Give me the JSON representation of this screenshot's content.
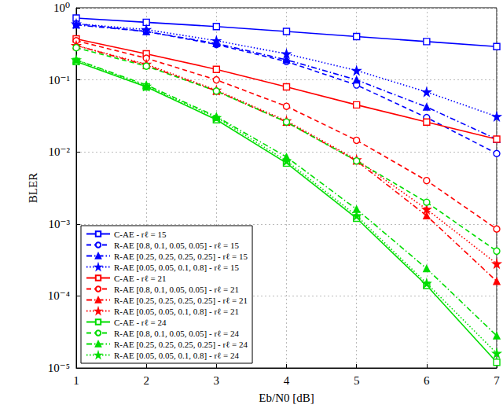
{
  "chart_data": {
    "type": "line",
    "x_label": "Eb/N0 [dB]",
    "y_label": "BLER",
    "log": "y",
    "grid": true,
    "legend": "lower left",
    "xlim": [
      1,
      7
    ],
    "xticks": [
      1,
      2,
      3,
      4,
      5,
      6,
      7
    ],
    "ylim": [
      1e-05,
      1
    ],
    "yticks": [
      {
        "value": 1e-05,
        "label": "10⁻⁵"
      },
      {
        "value": 0.0001,
        "label": "10⁻⁴"
      },
      {
        "value": 0.001,
        "label": "10⁻³"
      },
      {
        "value": 0.01,
        "label": "10⁻²"
      },
      {
        "value": 0.1,
        "label": "10⁻¹"
      },
      {
        "value": 1,
        "label": "10⁰"
      }
    ],
    "x": [
      1,
      2,
      3,
      4,
      5,
      6,
      7
    ],
    "series": [
      {
        "name": "C-AE - rℓ = 15",
        "color": "#0000ff",
        "marker": "square",
        "line_style": "solid",
        "values": [
          0.72,
          0.63,
          0.55,
          0.47,
          0.4,
          0.34,
          0.29
        ]
      },
      {
        "name": "R-AE [0.8, 0.1, 0.05, 0.05] - rℓ = 15",
        "color": "#0000ff",
        "marker": "circle",
        "line_style": "dashed",
        "values": [
          0.6,
          0.47,
          0.31,
          0.18,
          0.085,
          0.03,
          0.0095
        ]
      },
      {
        "name": "R-AE [0.25, 0.25, 0.25, 0.25] - rℓ = 15",
        "color": "#0000ff",
        "marker": "triangle",
        "line_style": "dashdot",
        "values": [
          0.58,
          0.47,
          0.32,
          0.19,
          0.1,
          0.042,
          0.015
        ]
      },
      {
        "name": "R-AE [0.05, 0.05, 0.1, 0.8] - rℓ = 15",
        "color": "#0000ff",
        "marker": "star",
        "line_style": "dotted",
        "values": [
          0.6,
          0.5,
          0.35,
          0.23,
          0.135,
          0.068,
          0.031
        ]
      },
      {
        "name": "C-AE - rℓ = 21",
        "color": "#ff0000",
        "marker": "square",
        "line_style": "solid",
        "values": [
          0.37,
          0.23,
          0.14,
          0.08,
          0.045,
          0.026,
          0.015
        ]
      },
      {
        "name": "R-AE [0.8, 0.1, 0.05, 0.05] - rℓ = 21",
        "color": "#ff0000",
        "marker": "circle",
        "line_style": "dashed",
        "values": [
          0.35,
          0.2,
          0.1,
          0.043,
          0.0145,
          0.004,
          0.00085
        ]
      },
      {
        "name": "R-AE [0.25, 0.25, 0.25, 0.25] - rℓ = 21",
        "color": "#ff0000",
        "marker": "triangle",
        "line_style": "dashdot",
        "values": [
          0.3,
          0.16,
          0.07,
          0.026,
          0.0075,
          0.0013,
          0.00016
        ]
      },
      {
        "name": "R-AE [0.05, 0.05, 0.1, 0.8] - rℓ = 21",
        "color": "#ff0000",
        "marker": "star",
        "line_style": "dotted",
        "values": [
          0.3,
          0.165,
          0.072,
          0.027,
          0.0078,
          0.0016,
          0.00028
        ]
      },
      {
        "name": "C-AE - rℓ = 24",
        "color": "#00dd00",
        "marker": "square",
        "line_style": "solid",
        "values": [
          0.18,
          0.08,
          0.028,
          0.007,
          0.0012,
          0.00014,
          1.2e-05
        ]
      },
      {
        "name": "R-AE [0.8, 0.1, 0.05, 0.05] - rℓ = 24",
        "color": "#00dd00",
        "marker": "circle",
        "line_style": "dashed",
        "values": [
          0.28,
          0.155,
          0.07,
          0.026,
          0.0075,
          0.002,
          0.00042
        ]
      },
      {
        "name": "R-AE [0.25, 0.25, 0.25, 0.25] - rℓ = 24",
        "color": "#00dd00",
        "marker": "triangle",
        "line_style": "dashdot",
        "values": [
          0.19,
          0.085,
          0.031,
          0.0085,
          0.0016,
          0.00024,
          2.8e-05
        ]
      },
      {
        "name": "R-AE [0.05, 0.05, 0.1, 0.8] - rℓ = 24",
        "color": "#00dd00",
        "marker": "star",
        "line_style": "dotted",
        "values": [
          0.19,
          0.082,
          0.03,
          0.0075,
          0.0013,
          0.00015,
          1.6e-05
        ]
      }
    ]
  }
}
